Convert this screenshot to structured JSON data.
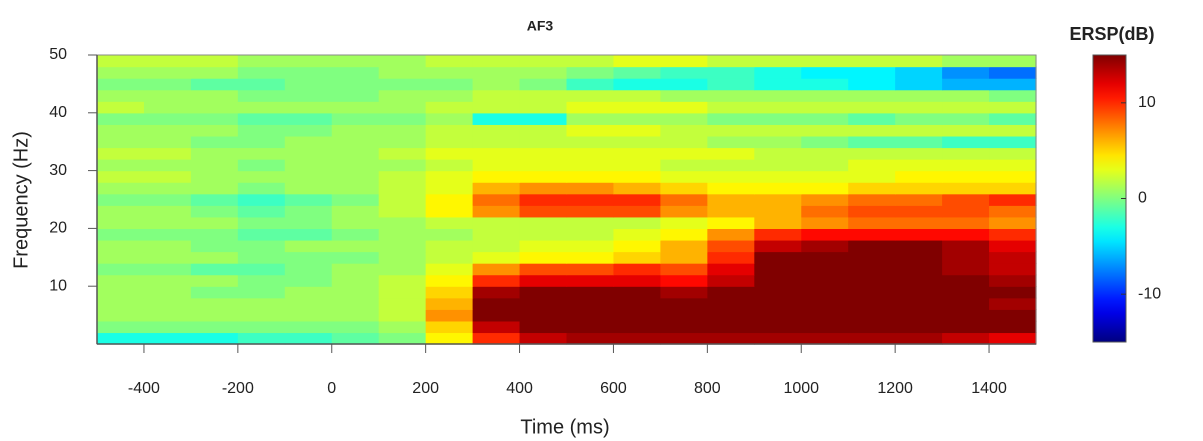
{
  "chart_data": {
    "type": "heatmap",
    "title": "AF3",
    "x_label": "Time (ms)",
    "y_label": "Frequency (Hz)",
    "colorbar_title": "ERSP(dB)",
    "colormap": "jet",
    "x": [
      -450,
      -350,
      -250,
      -150,
      -50,
      50,
      150,
      250,
      350,
      450,
      550,
      650,
      750,
      850,
      950,
      1050,
      1150,
      1250,
      1350,
      1450
    ],
    "y": [
      1,
      3,
      5,
      7,
      9,
      11,
      13,
      15,
      17,
      19,
      21,
      23,
      25,
      27,
      29,
      31,
      33,
      35,
      37,
      39,
      41,
      43,
      45,
      47,
      49
    ],
    "values": [
      [
        -3,
        -3,
        -3,
        -2,
        -2,
        -1,
        0,
        4,
        10,
        13,
        14,
        14,
        14,
        14,
        14,
        14,
        14,
        14,
        13,
        12
      ],
      [
        0,
        0,
        0,
        0,
        0,
        0,
        1,
        5,
        13,
        15,
        15,
        15,
        15,
        15,
        15,
        15,
        15,
        15,
        15,
        15
      ],
      [
        1,
        1,
        1,
        1,
        1,
        1,
        2,
        7,
        15,
        15,
        15,
        15,
        15,
        15,
        15,
        15,
        15,
        15,
        15,
        15
      ],
      [
        1,
        1,
        1,
        1,
        1,
        1,
        2,
        6,
        15,
        15,
        15,
        15,
        15,
        15,
        15,
        15,
        15,
        15,
        15,
        14
      ],
      [
        1,
        1,
        0,
        0,
        1,
        1,
        2,
        5,
        14,
        15,
        15,
        15,
        14,
        15,
        15,
        15,
        15,
        15,
        15,
        15
      ],
      [
        1,
        1,
        1,
        0,
        0,
        1,
        2,
        4,
        10,
        12,
        12,
        12,
        11,
        13,
        15,
        15,
        15,
        15,
        15,
        14
      ],
      [
        0,
        0,
        -1,
        -1,
        0,
        1,
        1,
        3,
        7,
        9,
        9,
        10,
        9,
        12,
        15,
        15,
        15,
        15,
        14,
        13
      ],
      [
        1,
        1,
        1,
        0,
        0,
        0,
        1,
        2,
        3,
        4,
        4,
        5,
        6,
        10,
        15,
        15,
        15,
        15,
        14,
        13
      ],
      [
        1,
        1,
        0,
        0,
        1,
        1,
        1,
        2,
        2,
        3,
        3,
        4,
        6,
        9,
        13,
        14,
        15,
        15,
        14,
        12
      ],
      [
        0,
        0,
        0,
        -1,
        -1,
        0,
        1,
        1,
        2,
        2,
        2,
        3,
        4,
        7,
        10,
        11,
        11,
        11,
        11,
        10
      ],
      [
        1,
        1,
        1,
        0,
        0,
        1,
        1,
        2,
        2,
        2,
        2,
        2,
        3,
        4,
        6,
        7,
        8,
        8,
        8,
        7
      ],
      [
        1,
        1,
        0,
        -1,
        0,
        1,
        2,
        4,
        7,
        9,
        9,
        9,
        7,
        6,
        6,
        8,
        9,
        9,
        9,
        8
      ],
      [
        0,
        0,
        -1,
        -2,
        -1,
        0,
        2,
        4,
        8,
        10,
        10,
        10,
        8,
        6,
        6,
        7,
        8,
        8,
        9,
        10
      ],
      [
        1,
        1,
        1,
        0,
        1,
        1,
        2,
        3,
        6,
        7,
        7,
        6,
        5,
        4,
        4,
        4,
        5,
        5,
        5,
        5
      ],
      [
        2,
        2,
        1,
        1,
        1,
        1,
        2,
        3,
        4,
        4,
        4,
        4,
        3,
        3,
        3,
        3,
        3,
        4,
        4,
        4
      ],
      [
        1,
        1,
        1,
        0,
        1,
        1,
        1,
        2,
        3,
        3,
        3,
        3,
        2,
        2,
        2,
        2,
        3,
        3,
        3,
        3
      ],
      [
        2,
        2,
        1,
        1,
        1,
        1,
        2,
        3,
        3,
        3,
        3,
        3,
        3,
        3,
        2,
        2,
        2,
        2,
        2,
        2
      ],
      [
        1,
        1,
        0,
        0,
        1,
        1,
        1,
        2,
        2,
        2,
        2,
        2,
        2,
        1,
        1,
        0,
        -1,
        -1,
        -2,
        -2
      ],
      [
        1,
        1,
        1,
        0,
        0,
        1,
        1,
        2,
        2,
        2,
        3,
        3,
        2,
        2,
        2,
        2,
        2,
        2,
        2,
        2
      ],
      [
        0,
        0,
        0,
        -1,
        -1,
        0,
        0,
        1,
        -3,
        -3,
        1,
        1,
        1,
        0,
        0,
        0,
        -1,
        0,
        0,
        -1
      ],
      [
        2,
        1,
        1,
        1,
        1,
        1,
        1,
        2,
        2,
        2,
        3,
        3,
        3,
        2,
        2,
        2,
        2,
        2,
        2,
        2
      ],
      [
        1,
        1,
        1,
        0,
        0,
        0,
        1,
        1,
        2,
        2,
        2,
        2,
        1,
        1,
        1,
        1,
        1,
        1,
        1,
        0
      ],
      [
        0,
        0,
        -1,
        -1,
        0,
        0,
        0,
        0,
        1,
        0,
        -2,
        -3,
        -3,
        -2,
        -3,
        -3,
        -4,
        -5,
        -6,
        -6
      ],
      [
        1,
        1,
        1,
        0,
        0,
        0,
        1,
        1,
        1,
        1,
        0,
        -1,
        -2,
        -2,
        -3,
        -4,
        -4,
        -5,
        -7,
        -8
      ],
      [
        2,
        2,
        2,
        1,
        1,
        1,
        1,
        2,
        2,
        2,
        2,
        3,
        3,
        2,
        2,
        2,
        2,
        2,
        1,
        1
      ]
    ],
    "xlim": [
      -500,
      1500
    ],
    "ylim": [
      0,
      50
    ],
    "xticks": [
      -400,
      -200,
      0,
      200,
      400,
      600,
      800,
      1000,
      1200,
      1400
    ],
    "yticks": [
      10,
      20,
      30,
      40,
      50
    ],
    "clim": [
      -15,
      15
    ],
    "cticks": [
      -10,
      0,
      10
    ]
  }
}
